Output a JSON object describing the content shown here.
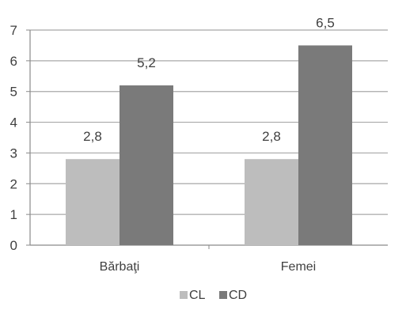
{
  "chart_data": {
    "type": "bar",
    "categories": [
      "Bărbaţi",
      "Femei"
    ],
    "series": [
      {
        "name": "CL",
        "values": [
          2.8,
          2.8
        ],
        "labels": [
          "2,8",
          "2,8"
        ],
        "color": "#bdbdbd"
      },
      {
        "name": "CD",
        "values": [
          5.2,
          6.5
        ],
        "labels": [
          "5,2",
          "6,5"
        ],
        "color": "#7a7a7a"
      }
    ],
    "yticks": [
      0,
      1,
      2,
      3,
      4,
      5,
      6,
      7
    ],
    "ylim": [
      0,
      7
    ],
    "grid": true,
    "legend": "bottom",
    "title": "",
    "xlabel": "",
    "ylabel": ""
  }
}
